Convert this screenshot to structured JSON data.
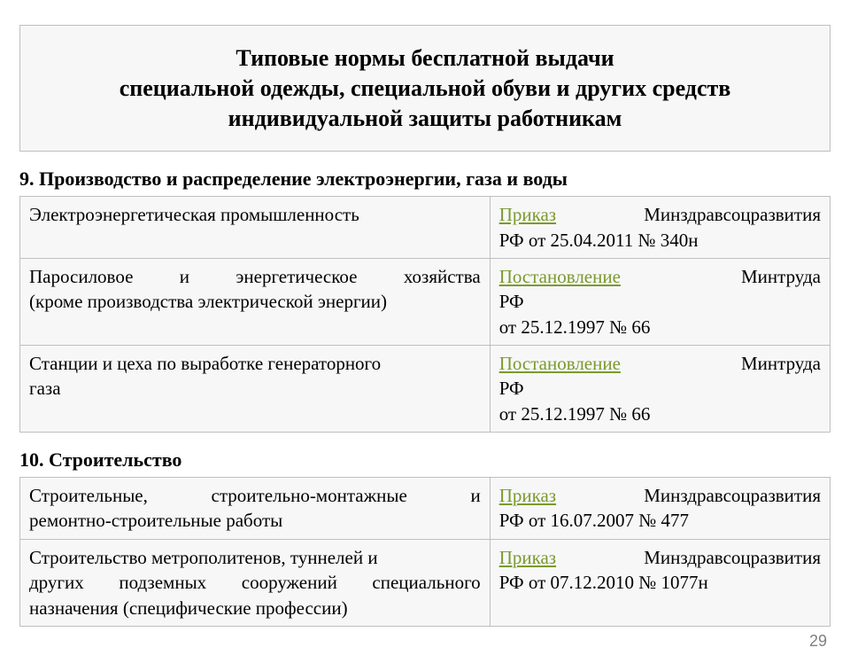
{
  "title": {
    "line1": "Типовые нормы бесплатной выдачи",
    "line2": "специальной одежды, специальной обуви и других средств",
    "line3": "индивидуальной защиты работникам"
  },
  "colors": {
    "panel_bg": "#f7f7f7",
    "panel_border": "#bfbfbf",
    "link_color": "#7a9a2e",
    "text_color": "#000000",
    "pagenum_color": "#808080"
  },
  "section9": {
    "heading": "9. Производство и распределение электроэнергии, газа и воды",
    "rows": [
      {
        "left": "Электроэнергетическая промышленность",
        "link": "Приказ",
        "right_after_link_1": "Минздравсоцразвития",
        "right_line2": "РФ от 25.04.2011 № 340н"
      },
      {
        "left_line1_a": "Паросиловое",
        "left_line1_b": "и",
        "left_line1_c": "энергетическое",
        "left_line1_d": "хозяйства",
        "left_line2": "(кроме производства электрической энергии)",
        "link": "Постановление",
        "right_after_link_1": "Минтруда",
        "right_line2": "РФ",
        "right_line3": "от 25.12.1997 № 66"
      },
      {
        "left_line1": "Станции и цеха по выработке  генераторного",
        "left_line2": "газа",
        "link": "Постановление",
        "right_after_link_1": "Минтруда",
        "right_line2": "РФ",
        "right_line3": "от 25.12.1997 № 66"
      }
    ]
  },
  "section10": {
    "heading": "10. Строительство",
    "rows": [
      {
        "left_line1_a": "Строительные,",
        "left_line1_b": "строительно-монтажные",
        "left_line1_c": "и",
        "left_line2": "ремонтно-строительные работы",
        "link": "Приказ",
        "right_after_link_1": "Минздравсоцразвития",
        "right_line2": "РФ от 16.07.2007 № 477"
      },
      {
        "left_line1": "Строительство метрополитенов, туннелей и",
        "left_line2_a": "других",
        "left_line2_b": "подземных",
        "left_line2_c": "сооружений",
        "left_line2_d": "специального",
        "left_line3": "назначения (специфические профессии)",
        "link": "Приказ",
        "right_after_link_1": "Минздравсоцразвития",
        "right_line2": "РФ от 07.12.2010 № 1077н"
      }
    ]
  },
  "page_number": "29"
}
